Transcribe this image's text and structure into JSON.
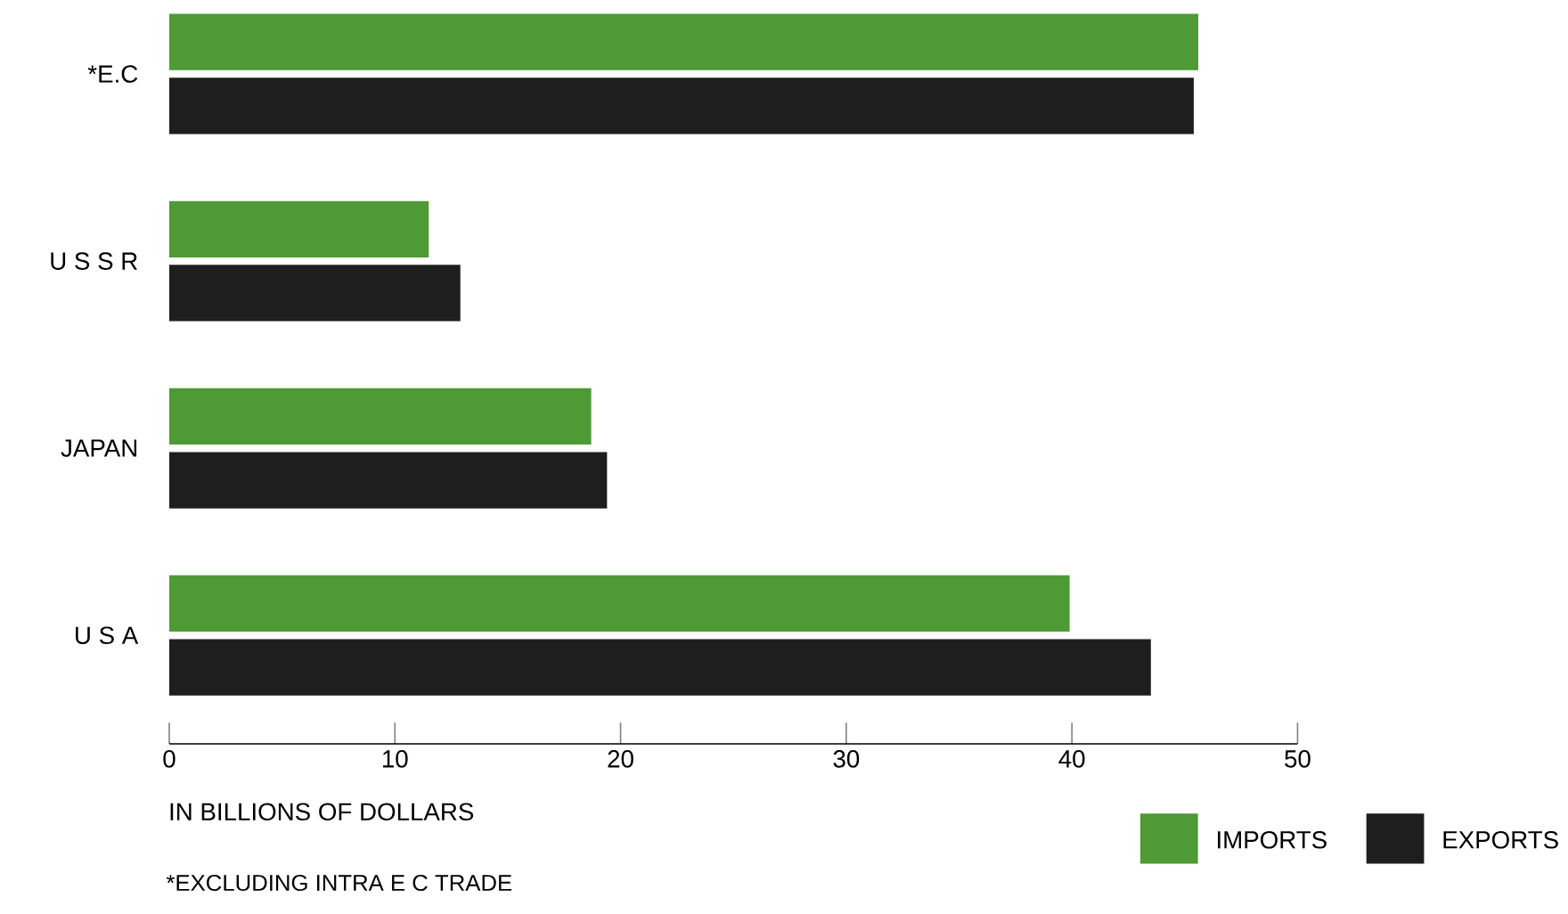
{
  "chart_data": {
    "type": "bar",
    "orientation": "horizontal",
    "categories": [
      "*E.C",
      "U S S R",
      "JAPAN",
      "U S A"
    ],
    "series": [
      {
        "name": "IMPORTS",
        "color": "#4e9a35",
        "values": [
          45.6,
          11.5,
          18.7,
          39.9
        ]
      },
      {
        "name": "EXPORTS",
        "color": "#1e1e1e",
        "values": [
          45.4,
          12.9,
          19.4,
          43.5
        ]
      }
    ],
    "xlim": [
      0,
      50
    ],
    "xticks": [
      0,
      10,
      20,
      30,
      40,
      50
    ],
    "xlabel": "IN BILLIONS OF DOLLARS",
    "legend": "bottom right",
    "annotations": [
      "*EXCLUDING INTRA  E C TRADE"
    ]
  }
}
